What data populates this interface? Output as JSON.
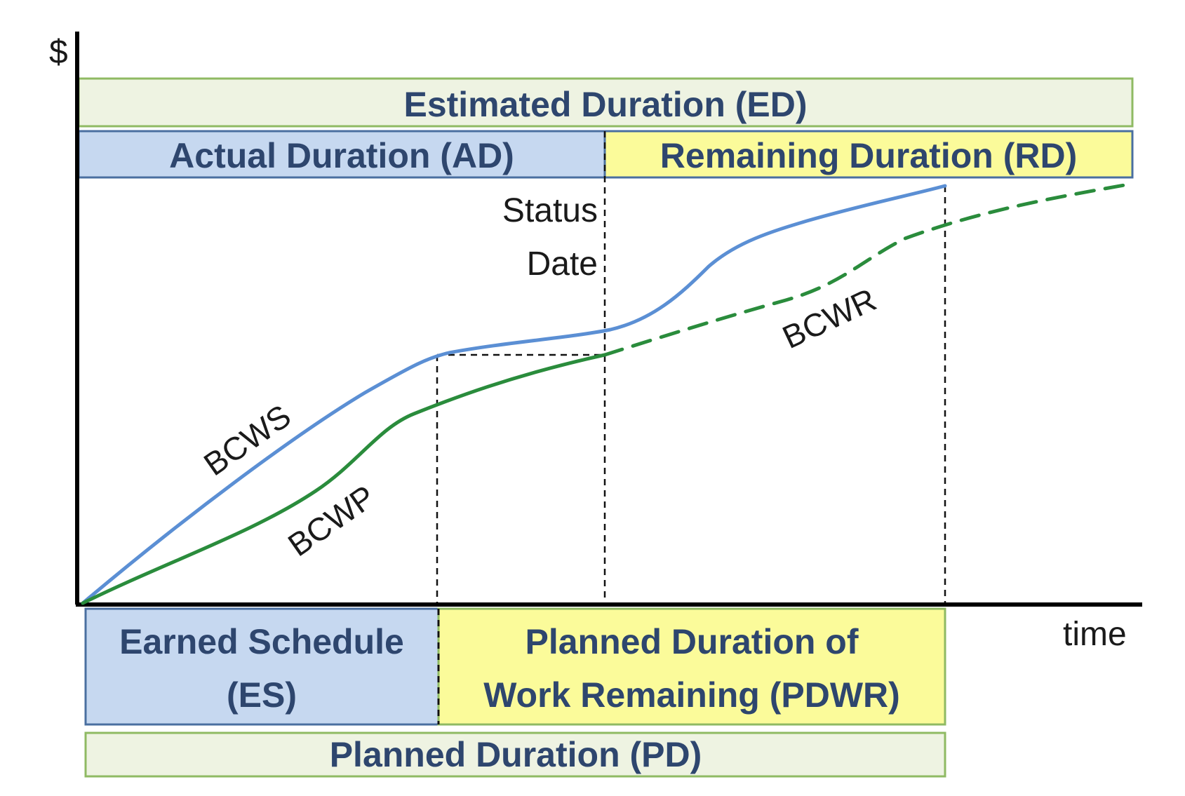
{
  "axes": {
    "y_label": "$",
    "x_label": "time"
  },
  "top_bands": {
    "estimated_duration": "Estimated Duration (ED)",
    "actual_duration": "Actual Duration (AD)",
    "remaining_duration": "Remaining Duration (RD)"
  },
  "status_date": {
    "line1": "Status",
    "line2": "Date"
  },
  "curves": {
    "bcws": "BCWS",
    "bcwp": "BCWP",
    "bcwr": "BCWR"
  },
  "bottom_bands": {
    "earned_schedule_line1": "Earned Schedule",
    "earned_schedule_line2": "(ES)",
    "pdwr_line1": "Planned Duration of",
    "pdwr_line2": "Work Remaining (PDWR)",
    "planned_duration": "Planned Duration (PD)"
  },
  "colors": {
    "bcws_line": "#5b8fd4",
    "bcwp_line": "#2a8c3c",
    "ed_band_fill": "#eef3e2",
    "ed_band_stroke": "#8fba63",
    "ad_band_fill": "#c6d8f0",
    "ad_band_stroke": "#4a6fa0",
    "rd_band_fill": "#fbfb9a",
    "box_text": "#2e466e"
  }
}
